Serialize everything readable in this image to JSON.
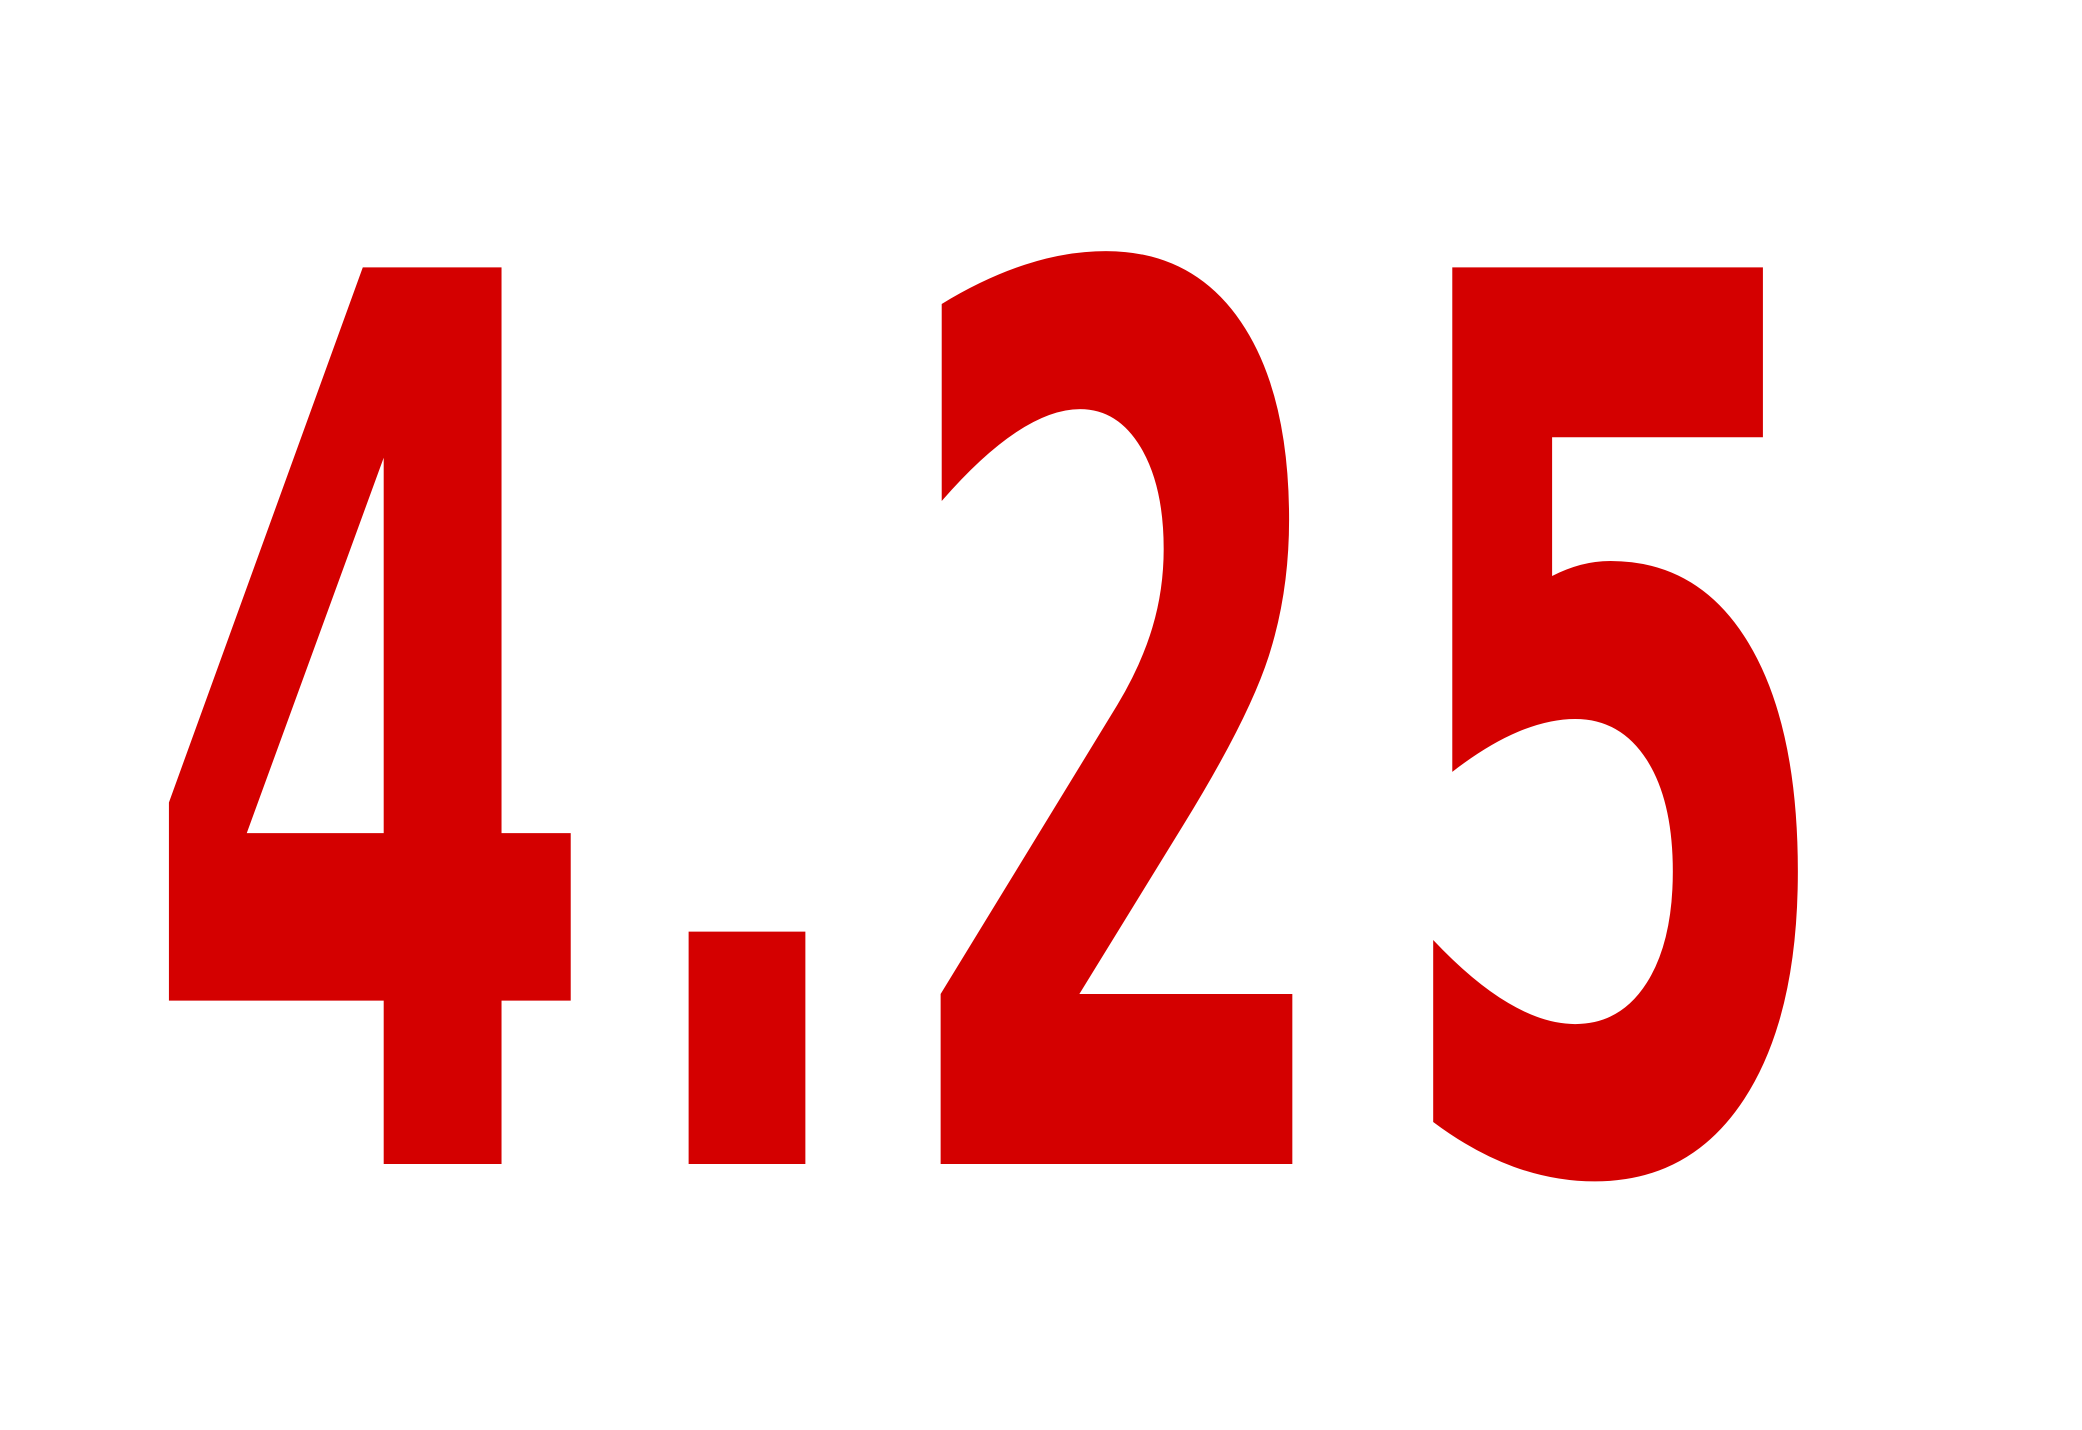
{
  "display": {
    "value": "4.25",
    "glyphs": [
      "4",
      ".",
      "2",
      "5"
    ],
    "color": "#d40000",
    "background": "#ffffff"
  }
}
